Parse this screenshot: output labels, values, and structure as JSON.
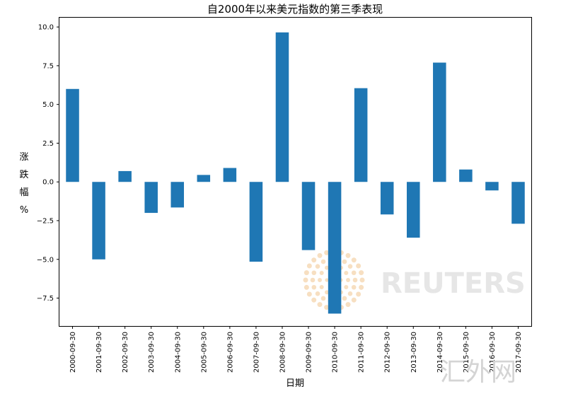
{
  "chart_data": {
    "type": "bar",
    "title": "自2000年以来美元指数的第三季表现",
    "xlabel": "日期",
    "ylabel": "涨跌幅%",
    "categories": [
      "2000-09-30",
      "2001-09-30",
      "2002-09-30",
      "2003-09-30",
      "2004-09-30",
      "2005-09-30",
      "2006-09-30",
      "2007-09-30",
      "2008-09-30",
      "2009-09-30",
      "2010-09-30",
      "2011-09-30",
      "2012-09-30",
      "2013-09-30",
      "2014-09-30",
      "2015-09-30",
      "2016-09-30",
      "2017-09-30"
    ],
    "values": [
      6.0,
      -5.0,
      0.7,
      -2.0,
      -1.65,
      0.45,
      0.9,
      -5.15,
      9.65,
      -4.4,
      -8.5,
      6.05,
      -2.1,
      -3.6,
      7.7,
      0.8,
      -0.55,
      -2.7
    ],
    "yticks": [
      10.0,
      7.5,
      5.0,
      2.5,
      0.0,
      -2.5,
      -5.0,
      -7.5
    ],
    "ytick_labels": [
      "10.0",
      "7.5",
      "5.0",
      "2.5",
      "0.0",
      "−2.5",
      "−5.0",
      "−7.5"
    ],
    "ylim": [
      -9.3,
      10.6
    ],
    "grid": false,
    "bar_color": "#1f77b4",
    "legend": "none"
  },
  "watermarks": {
    "reuters": "REUTERS",
    "corner": "汇外网",
    "reuters_logo": "reuters-dot-logo"
  }
}
